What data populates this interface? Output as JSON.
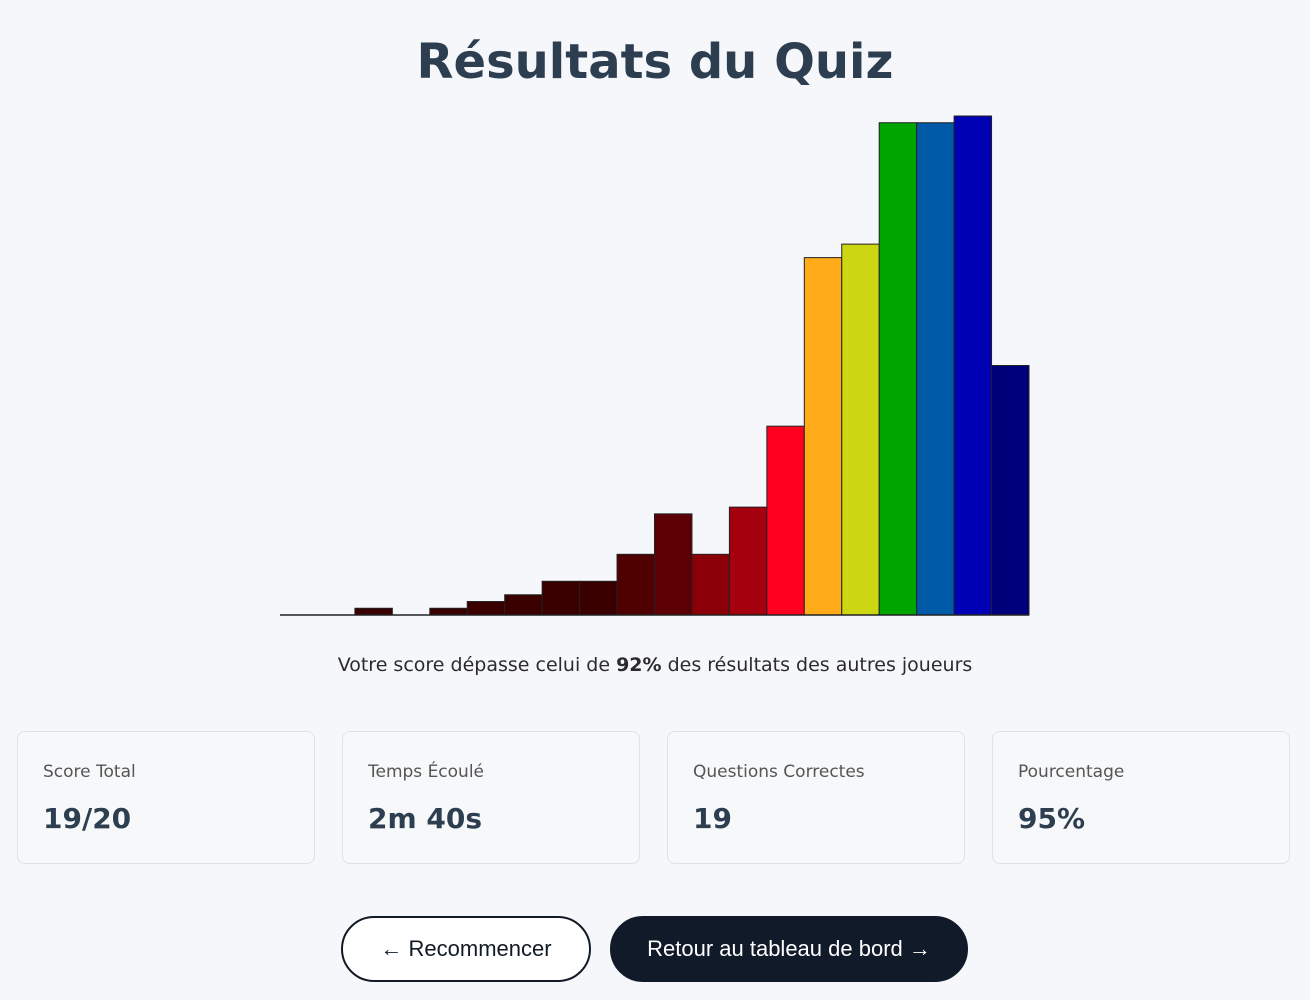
{
  "header": {
    "title": "Résultats du Quiz"
  },
  "chart_data": {
    "type": "bar",
    "title": "",
    "xlabel": "",
    "ylabel": "",
    "values": [
      0,
      0,
      1,
      0,
      1,
      2,
      3,
      5,
      5,
      9,
      15,
      9,
      16,
      28,
      53,
      55,
      73,
      73,
      74,
      37
    ],
    "colors": [
      "#3a0000",
      "#3a0000",
      "#3a0000",
      "#3a0000",
      "#3a0000",
      "#3a0000",
      "#3a0000",
      "#3a0000",
      "#3a0000",
      "#4f0000",
      "#5c0005",
      "#8b0008",
      "#a5000d",
      "#ff0020",
      "#ffab1a",
      "#cdd612",
      "#00a600",
      "#005aa8",
      "#0000b5",
      "#00007a"
    ],
    "ylim": [
      0,
      74
    ],
    "grid": false,
    "legend": "none"
  },
  "summary": {
    "prefix": "Votre score dépasse celui de ",
    "percent": "92%",
    "suffix": " des résultats des autres joueurs"
  },
  "stats": [
    {
      "label": "Score Total",
      "value": "19/20"
    },
    {
      "label": "Temps Écoulé",
      "value": "2m 40s"
    },
    {
      "label": "Questions Correctes",
      "value": "19"
    },
    {
      "label": "Pourcentage",
      "value": "95%"
    }
  ],
  "actions": {
    "restart_label": "← Recommencer",
    "dashboard_label": "Retour au tableau de bord →"
  }
}
